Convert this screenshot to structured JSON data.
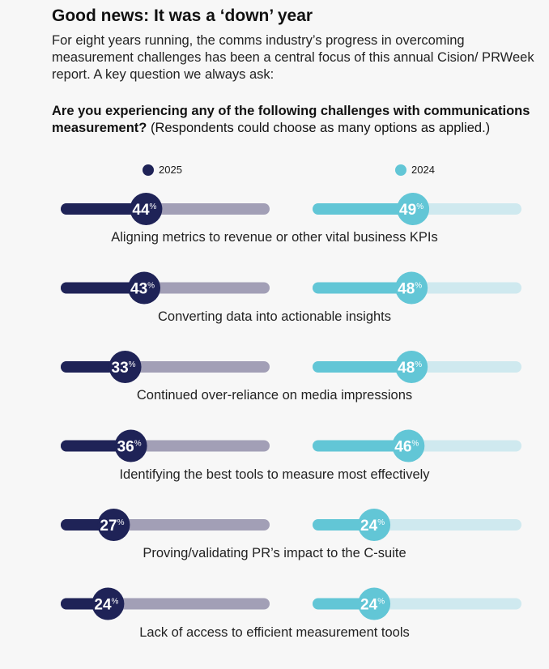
{
  "title": "Good news: It was a ‘down’ year",
  "intro": "For eight years running, the comms industry’s progress in overcoming measurement challenges has been a central focus of this annual Cision/ PRWeek report. A key question we always ask:",
  "question_bold": "Are you experiencing any of the following challenges with communications measurement?",
  "question_note": " (Respondents could choose as many options as applied.)",
  "chart_data": {
    "type": "bar",
    "categories": [
      "Aligning metrics to revenue or other vital business KPIs",
      "Converting data into actionable insights",
      "Continued over-reliance on media impressions",
      "Identifying the best tools to measure most effectively",
      "Proving/validating PR’s impact to the C-suite",
      "Lack of access to efficient measurement tools"
    ],
    "series": [
      {
        "name": "2025",
        "values": [
          44,
          43,
          33,
          36,
          27,
          24
        ],
        "color": "#1f2357",
        "track": "#a29fb6"
      },
      {
        "name": "2024",
        "values": [
          49,
          48,
          48,
          46,
          24,
          24
        ],
        "color": "#62c6d6",
        "track": "#cfe9ef"
      }
    ],
    "unit": "%",
    "ylim": [
      0,
      100
    ]
  }
}
